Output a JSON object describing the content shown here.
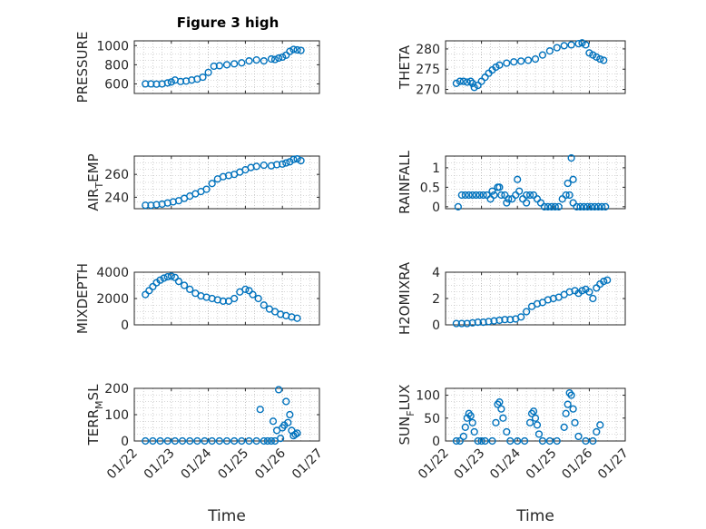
{
  "figure": {
    "title": "Figure 3 high"
  },
  "colors": {
    "marker": "#0072BD",
    "axes": "#262626",
    "grid": "#b0b0b0"
  },
  "chart_data": [
    {
      "id": "pressure",
      "type": "scatter",
      "title": "Figure 3 high",
      "ylabel_main": "PRESSURE",
      "ylabel_sub": "",
      "ylabel_tail": "",
      "ylim": [
        500,
        1050
      ],
      "yticks": [
        600,
        800,
        1000
      ],
      "ytick_labels": [
        "600",
        "800",
        "1000"
      ],
      "xlim": [
        0,
        5
      ],
      "xticks": [
        0,
        1,
        2,
        3,
        4,
        5
      ],
      "grid": true,
      "x": [
        0.3,
        0.45,
        0.6,
        0.75,
        0.9,
        1.0,
        1.1,
        1.25,
        1.4,
        1.55,
        1.7,
        1.85,
        2.0,
        2.15,
        2.3,
        2.5,
        2.7,
        2.9,
        3.1,
        3.3,
        3.5,
        3.7,
        3.8,
        3.9,
        4.0,
        4.1,
        4.2,
        4.3,
        4.4,
        4.5
      ],
      "y": [
        600,
        600,
        598,
        600,
        610,
        620,
        640,
        625,
        630,
        640,
        650,
        670,
        720,
        785,
        790,
        800,
        810,
        820,
        840,
        850,
        840,
        860,
        855,
        870,
        880,
        900,
        940,
        960,
        955,
        950
      ]
    },
    {
      "id": "theta",
      "type": "scatter",
      "title": "",
      "ylabel_main": "THETA",
      "ylabel_sub": "",
      "ylabel_tail": "",
      "ylim": [
        269,
        282
      ],
      "yticks": [
        270,
        275,
        280
      ],
      "ytick_labels": [
        "270",
        "275",
        "280"
      ],
      "xlim": [
        0,
        5
      ],
      "xticks": [
        0,
        1,
        2,
        3,
        4,
        5
      ],
      "grid": true,
      "x": [
        0.3,
        0.4,
        0.5,
        0.6,
        0.7,
        0.75,
        0.8,
        0.9,
        1.0,
        1.1,
        1.2,
        1.3,
        1.4,
        1.5,
        1.7,
        1.9,
        2.1,
        2.3,
        2.5,
        2.7,
        2.9,
        3.1,
        3.3,
        3.5,
        3.7,
        3.8,
        3.9,
        4.0,
        4.1,
        4.2,
        4.3,
        4.4
      ],
      "y": [
        271.5,
        272,
        272,
        271.8,
        272,
        271.5,
        270.5,
        271,
        272,
        273,
        274,
        274.8,
        275.5,
        276,
        276.5,
        276.8,
        277,
        277.2,
        277.5,
        278.5,
        279.5,
        280.3,
        280.8,
        281,
        281.3,
        281.5,
        281,
        279,
        278.5,
        278,
        277.5,
        277.2
      ]
    },
    {
      "id": "air_temp",
      "type": "scatter",
      "title": "",
      "ylabel_main": "AIR",
      "ylabel_sub": "T",
      "ylabel_tail": "EMP",
      "ylim": [
        230,
        276
      ],
      "yticks": [
        240,
        260
      ],
      "ytick_labels": [
        "240",
        "260"
      ],
      "xlim": [
        0,
        5
      ],
      "xticks": [
        0,
        1,
        2,
        3,
        4,
        5
      ],
      "grid": true,
      "x": [
        0.3,
        0.45,
        0.6,
        0.75,
        0.9,
        1.05,
        1.2,
        1.35,
        1.5,
        1.65,
        1.8,
        1.95,
        2.1,
        2.25,
        2.4,
        2.55,
        2.7,
        2.85,
        3.0,
        3.15,
        3.3,
        3.5,
        3.7,
        3.85,
        4.0,
        4.1,
        4.2,
        4.3,
        4.4,
        4.5
      ],
      "y": [
        233,
        233,
        233.5,
        234,
        235,
        236,
        237,
        239,
        241,
        243,
        245,
        247,
        252,
        256,
        258,
        259,
        260,
        262,
        264,
        266,
        267,
        268,
        267.5,
        268.5,
        269,
        270,
        271,
        273,
        273.5,
        272
      ]
    },
    {
      "id": "rainfall",
      "type": "scatter",
      "title": "",
      "ylabel_main": "RAINFALL",
      "ylabel_sub": "",
      "ylabel_tail": "",
      "ylim": [
        -0.05,
        1.3
      ],
      "yticks": [
        0,
        0.5,
        1
      ],
      "ytick_labels": [
        "0",
        "0.5",
        "1"
      ],
      "xlim": [
        0,
        5
      ],
      "xticks": [
        0,
        1,
        2,
        3,
        4,
        5
      ],
      "grid": true,
      "x": [
        0.35,
        0.45,
        0.55,
        0.65,
        0.75,
        0.85,
        0.95,
        1.05,
        1.15,
        1.25,
        1.35,
        1.45,
        1.55,
        1.65,
        1.75,
        1.85,
        1.95,
        2.05,
        2.15,
        2.25,
        2.35,
        2.45,
        2.55,
        2.65,
        2.75,
        2.85,
        2.95,
        3.05,
        3.15,
        3.25,
        3.35,
        3.45,
        3.55,
        3.65,
        3.75,
        3.85,
        3.95,
        4.05,
        4.15,
        4.25,
        4.35,
        4.45,
        1.3,
        1.5,
        2.0,
        2.25,
        3.4,
        3.5,
        3.55,
        1.7
      ],
      "y": [
        0,
        0.3,
        0.3,
        0.3,
        0.3,
        0.3,
        0.3,
        0.3,
        0.3,
        0.2,
        0.3,
        0.5,
        0.3,
        0.3,
        0.2,
        0.2,
        0.3,
        0.4,
        0.2,
        0.1,
        0.3,
        0.3,
        0.2,
        0.1,
        0,
        0,
        0,
        0,
        0,
        0.2,
        0.3,
        0.3,
        0.1,
        0,
        0,
        0,
        0,
        0,
        0,
        0,
        0,
        0,
        0.4,
        0.5,
        0.7,
        0.3,
        0.6,
        1.25,
        0.7,
        0.1
      ]
    },
    {
      "id": "mixdepth",
      "type": "scatter",
      "title": "",
      "ylabel_main": "MIXDEPTH",
      "ylabel_sub": "",
      "ylabel_tail": "",
      "ylim": [
        0,
        4000
      ],
      "yticks": [
        0,
        2000,
        4000
      ],
      "ytick_labels": [
        "0",
        "2000",
        "4000"
      ],
      "xlim": [
        0,
        5
      ],
      "xticks": [
        0,
        1,
        2,
        3,
        4,
        5
      ],
      "grid": true,
      "x": [
        0.3,
        0.4,
        0.5,
        0.6,
        0.7,
        0.8,
        0.9,
        1.0,
        1.1,
        1.2,
        1.35,
        1.5,
        1.65,
        1.8,
        1.95,
        2.1,
        2.25,
        2.4,
        2.55,
        2.7,
        2.85,
        3.0,
        3.1,
        3.2,
        3.35,
        3.5,
        3.65,
        3.8,
        3.95,
        4.1,
        4.25,
        4.4
      ],
      "y": [
        2300,
        2600,
        2900,
        3200,
        3400,
        3550,
        3650,
        3700,
        3600,
        3300,
        3000,
        2700,
        2400,
        2200,
        2100,
        2000,
        1900,
        1800,
        1800,
        2000,
        2500,
        2700,
        2600,
        2300,
        2000,
        1500,
        1200,
        1000,
        800,
        700,
        600,
        500
      ]
    },
    {
      "id": "h2omixra",
      "type": "scatter",
      "title": "",
      "ylabel_main": "H2OMIXRA",
      "ylabel_sub": "",
      "ylabel_tail": "",
      "ylim": [
        0,
        4
      ],
      "yticks": [
        0,
        2,
        4
      ],
      "ytick_labels": [
        "0",
        "2",
        "4"
      ],
      "xlim": [
        0,
        5
      ],
      "xticks": [
        0,
        1,
        2,
        3,
        4,
        5
      ],
      "grid": true,
      "x": [
        0.3,
        0.45,
        0.6,
        0.75,
        0.9,
        1.05,
        1.2,
        1.35,
        1.5,
        1.65,
        1.8,
        1.95,
        2.1,
        2.25,
        2.4,
        2.55,
        2.7,
        2.85,
        3.0,
        3.15,
        3.3,
        3.45,
        3.6,
        3.7,
        3.8,
        3.9,
        4.0,
        4.1,
        4.2,
        4.3,
        4.4,
        4.5
      ],
      "y": [
        0.1,
        0.1,
        0.1,
        0.15,
        0.2,
        0.2,
        0.25,
        0.3,
        0.35,
        0.4,
        0.4,
        0.45,
        0.6,
        1.0,
        1.4,
        1.6,
        1.7,
        1.9,
        2.0,
        2.1,
        2.3,
        2.5,
        2.6,
        2.4,
        2.6,
        2.7,
        2.5,
        2.0,
        2.8,
        3.1,
        3.3,
        3.4
      ]
    },
    {
      "id": "terr_msl",
      "type": "scatter",
      "title": "",
      "ylabel_main": "TERR",
      "ylabel_sub": "M",
      "ylabel_tail": "SL",
      "ylim": [
        0,
        200
      ],
      "yticks": [
        0,
        100,
        200
      ],
      "ytick_labels": [
        "0",
        "100",
        "200"
      ],
      "xlim": [
        0,
        5
      ],
      "xticks": [
        0,
        1,
        2,
        3,
        4,
        5
      ],
      "grid": true,
      "xtick_labels": [
        "01/22",
        "01/23",
        "01/24",
        "01/25",
        "01/26",
        "01/27"
      ],
      "xlabel": "Time",
      "x": [
        0.3,
        0.5,
        0.7,
        0.9,
        1.1,
        1.3,
        1.5,
        1.7,
        1.9,
        2.1,
        2.3,
        2.5,
        2.7,
        2.9,
        3.1,
        3.3,
        3.5,
        3.6,
        3.7,
        3.8,
        3.9,
        4.0,
        4.05,
        4.1,
        4.15,
        4.2,
        4.25,
        4.3,
        4.35,
        4.4,
        3.4,
        3.75,
        3.85,
        3.95
      ],
      "y": [
        0,
        0,
        0,
        0,
        0,
        0,
        0,
        0,
        0,
        0,
        0,
        0,
        0,
        0,
        0,
        0,
        0,
        0,
        0,
        0,
        195,
        50,
        60,
        150,
        70,
        100,
        40,
        20,
        25,
        30,
        120,
        75,
        40,
        10
      ]
    },
    {
      "id": "sun_flux",
      "type": "scatter",
      "title": "",
      "ylabel_main": "SUN",
      "ylabel_sub": "F",
      "ylabel_tail": "LUX",
      "ylim": [
        0,
        115
      ],
      "yticks": [
        0,
        50,
        100
      ],
      "ytick_labels": [
        "0",
        "50",
        "100"
      ],
      "xlim": [
        0,
        5
      ],
      "xticks": [
        0,
        1,
        2,
        3,
        4,
        5
      ],
      "grid": true,
      "xtick_labels": [
        "01/22",
        "01/23",
        "01/24",
        "01/25",
        "01/26",
        "01/27"
      ],
      "xlabel": "Time",
      "x": [
        0.3,
        0.4,
        0.5,
        0.55,
        0.6,
        0.65,
        0.7,
        0.75,
        0.8,
        0.9,
        1.0,
        1.1,
        1.3,
        1.4,
        1.45,
        1.5,
        1.55,
        1.6,
        1.7,
        1.8,
        2.0,
        2.2,
        2.35,
        2.4,
        2.45,
        2.5,
        2.55,
        2.6,
        2.7,
        2.9,
        3.1,
        3.3,
        3.35,
        3.4,
        3.45,
        3.5,
        3.55,
        3.6,
        3.7,
        3.9,
        4.1,
        4.2,
        4.3
      ],
      "y": [
        0,
        0,
        10,
        30,
        50,
        60,
        55,
        40,
        20,
        0,
        0,
        0,
        0,
        40,
        80,
        85,
        70,
        50,
        20,
        0,
        0,
        0,
        40,
        60,
        65,
        50,
        35,
        15,
        0,
        0,
        0,
        30,
        60,
        80,
        105,
        100,
        70,
        40,
        10,
        0,
        0,
        20,
        35
      ]
    }
  ]
}
